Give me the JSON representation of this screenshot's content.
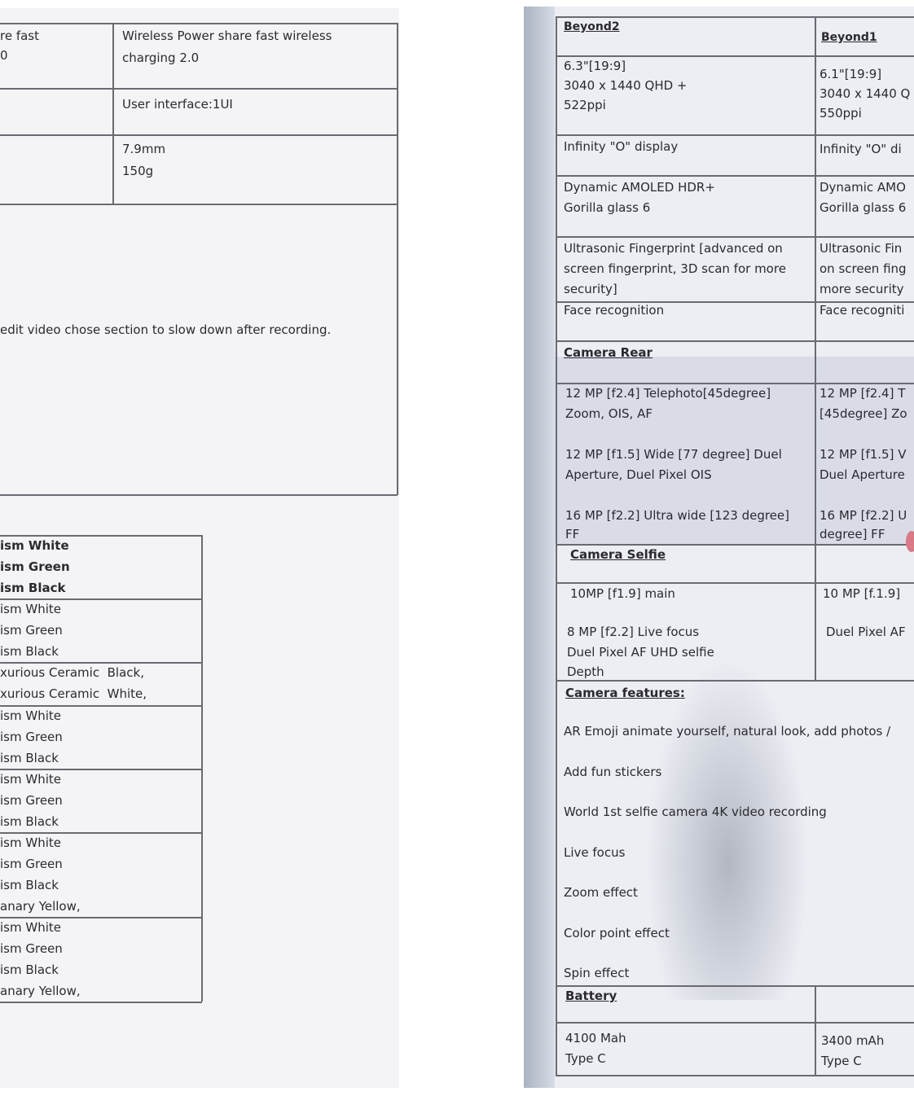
{
  "left_page": {
    "table_top": {
      "rows": [
        {
          "col1": [
            "re fast",
            "0"
          ],
          "col2": [
            "Wireless Power share fast wireless",
            "charging 2.0"
          ]
        },
        {
          "col1": [],
          "col2": [
            "User interface:1UI"
          ]
        },
        {
          "col1": [],
          "col2": [
            "7.9mm",
            "150g"
          ]
        }
      ]
    },
    "note": "edit video chose section to slow down after recording.",
    "colors_table": [
      [
        "ism White",
        "ism Green",
        "ism Black"
      ],
      [
        "ism White",
        "ism Green",
        "ism Black"
      ],
      [
        "xurious Ceramic  Black,",
        "xurious Ceramic  White,"
      ],
      [
        "ism White",
        "ism Green",
        "ism Black"
      ],
      [
        "ism White",
        "ism Green",
        "ism Black"
      ],
      [
        "ism White",
        "ism Green",
        "ism Black",
        "anary Yellow,"
      ],
      [
        "ism White",
        "ism Green",
        "ism Black",
        "anary Yellow,"
      ]
    ]
  },
  "right_page": {
    "headers": {
      "col1": "Beyond2",
      "col2": "Beyond1"
    },
    "display_1": {
      "col1": [
        "6.3\"[19:9]",
        "3040 x 1440 QHD +",
        "522ppi"
      ],
      "col2": [
        "6.1\"[19:9]",
        "3040 x 1440 Q",
        "550ppi"
      ]
    },
    "display_2": {
      "col1": "Infinity \"O\" display",
      "col2": "Infinity \"O\" di"
    },
    "display_3": {
      "col1": [
        "Dynamic AMOLED HDR+",
        "Gorilla glass 6"
      ],
      "col2": [
        "Dynamic AMO",
        "Gorilla glass 6"
      ]
    },
    "fingerprint": {
      "col1": [
        "Ultrasonic Fingerprint [advanced on",
        "screen fingerprint, 3D scan for more",
        "security]"
      ],
      "col2": [
        "Ultrasonic Fin",
        "on screen fing",
        "more security"
      ]
    },
    "face": {
      "col1": "Face recognition",
      "col2": "Face recogniti"
    },
    "camera_rear_heading": "Camera Rear",
    "camera_rear": {
      "col1": [
        "12 MP [f2.4] Telephoto[45degree]",
        "Zoom, OIS, AF",
        "12 MP [f1.5] Wide [77 degree] Duel",
        "Aperture, Duel Pixel OIS",
        "16 MP [f2.2] Ultra wide [123 degree]",
        "FF"
      ],
      "col2": [
        "12 MP [f2.4] T",
        "[45degree] Zo",
        "12 MP [f1.5] V",
        "Duel Aperture",
        "16 MP [f2.2] U",
        "degree] FF"
      ]
    },
    "camera_selfie_heading": "Camera Selfie",
    "camera_selfie": {
      "col1": [
        "10MP [f1.9] main",
        "8 MP [f2.2] Live focus",
        "Duel Pixel AF UHD selfie",
        "Depth"
      ],
      "col2": [
        "10 MP [f.1.9]",
        "Duel Pixel AF"
      ]
    },
    "camera_features_heading": "Camera features:",
    "camera_features": [
      "AR Emoji animate yourself, natural look, add photos /",
      "Add fun stickers",
      "World 1st selfie camera 4K video recording",
      "Live focus",
      "Zoom effect",
      "Color point effect",
      "Spin effect"
    ],
    "battery_heading": "Battery",
    "battery": {
      "col1": [
        "4100 Mah",
        "Type C"
      ],
      "col2": [
        "3400 mAh",
        "Type C"
      ]
    }
  }
}
